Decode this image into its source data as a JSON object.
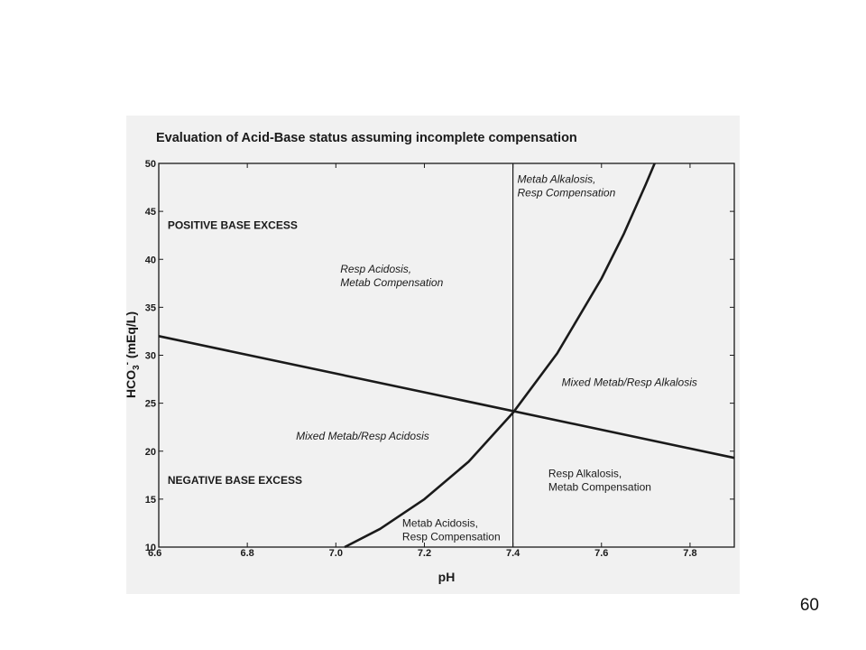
{
  "slide": {
    "page_number": "60"
  },
  "chart_data": {
    "type": "line",
    "title": "Evaluation of Acid-Base status assuming incomplete compensation",
    "xlabel": "pH",
    "ylabel": "HCO3- (mEq/L)",
    "ylabel_parts": {
      "base": "HCO",
      "sub": "3",
      "sup": "-",
      "rest": " (mEq/L)"
    },
    "xlim": [
      6.6,
      7.9
    ],
    "ylim": [
      10,
      50
    ],
    "x_ticks": [
      6.6,
      6.8,
      7.0,
      7.2,
      7.4,
      7.6,
      7.8
    ],
    "x_tick_labels": [
      "6.6",
      "6.8",
      "7.0",
      "7.2",
      "7.4",
      "7.6",
      "7.8"
    ],
    "y_ticks": [
      10,
      15,
      20,
      25,
      30,
      35,
      40,
      45,
      50
    ],
    "y_tick_labels": [
      "10",
      "15",
      "20",
      "25",
      "30",
      "35",
      "40",
      "45",
      "50"
    ],
    "grid": false,
    "series": [
      {
        "x": [
          6.6,
          7.9
        ],
        "y": [
          32.0,
          19.3
        ],
        "color": "#1a1a1a",
        "width": 2.6
      },
      {
        "x": [
          7.02,
          7.1,
          7.2,
          7.3,
          7.4,
          7.5,
          7.6,
          7.65,
          7.7,
          7.72
        ],
        "y": [
          10.0,
          11.9,
          15.0,
          18.9,
          24.0,
          30.2,
          38.0,
          42.6,
          47.8,
          50.0
        ],
        "color": "#1a1a1a",
        "width": 2.6
      },
      {
        "x": [
          7.4,
          7.4
        ],
        "y": [
          10,
          50
        ],
        "color": "#1a1a1a",
        "width": 1.2
      }
    ],
    "annotations": [
      {
        "lines": [
          "POSITIVE BASE EXCESS"
        ],
        "x": 6.62,
        "y": 43.2,
        "style": "bold"
      },
      {
        "lines": [
          "NEGATIVE BASE EXCESS"
        ],
        "x": 6.62,
        "y": 16.6,
        "style": "bold"
      },
      {
        "lines": [
          "Resp Acidosis,",
          "Metab Compensation"
        ],
        "x": 7.01,
        "y": 38.6,
        "style": "italic"
      },
      {
        "lines": [
          "Metab Alkalosis,",
          "Resp Compensation"
        ],
        "x": 7.41,
        "y": 48.0,
        "style": "italic"
      },
      {
        "lines": [
          "Mixed Metab/Resp Alkalosis"
        ],
        "x": 7.51,
        "y": 26.8,
        "style": "italic"
      },
      {
        "lines": [
          "Mixed Metab/Resp Acidosis"
        ],
        "x": 6.91,
        "y": 21.2,
        "style": "italic"
      },
      {
        "lines": [
          "Resp Alkalosis,",
          "Metab Compensation"
        ],
        "x": 7.48,
        "y": 17.3,
        "style": "plain"
      },
      {
        "lines": [
          "Metab Acidosis,",
          "Resp Compensation"
        ],
        "x": 7.15,
        "y": 12.1,
        "style": "plain"
      }
    ]
  }
}
